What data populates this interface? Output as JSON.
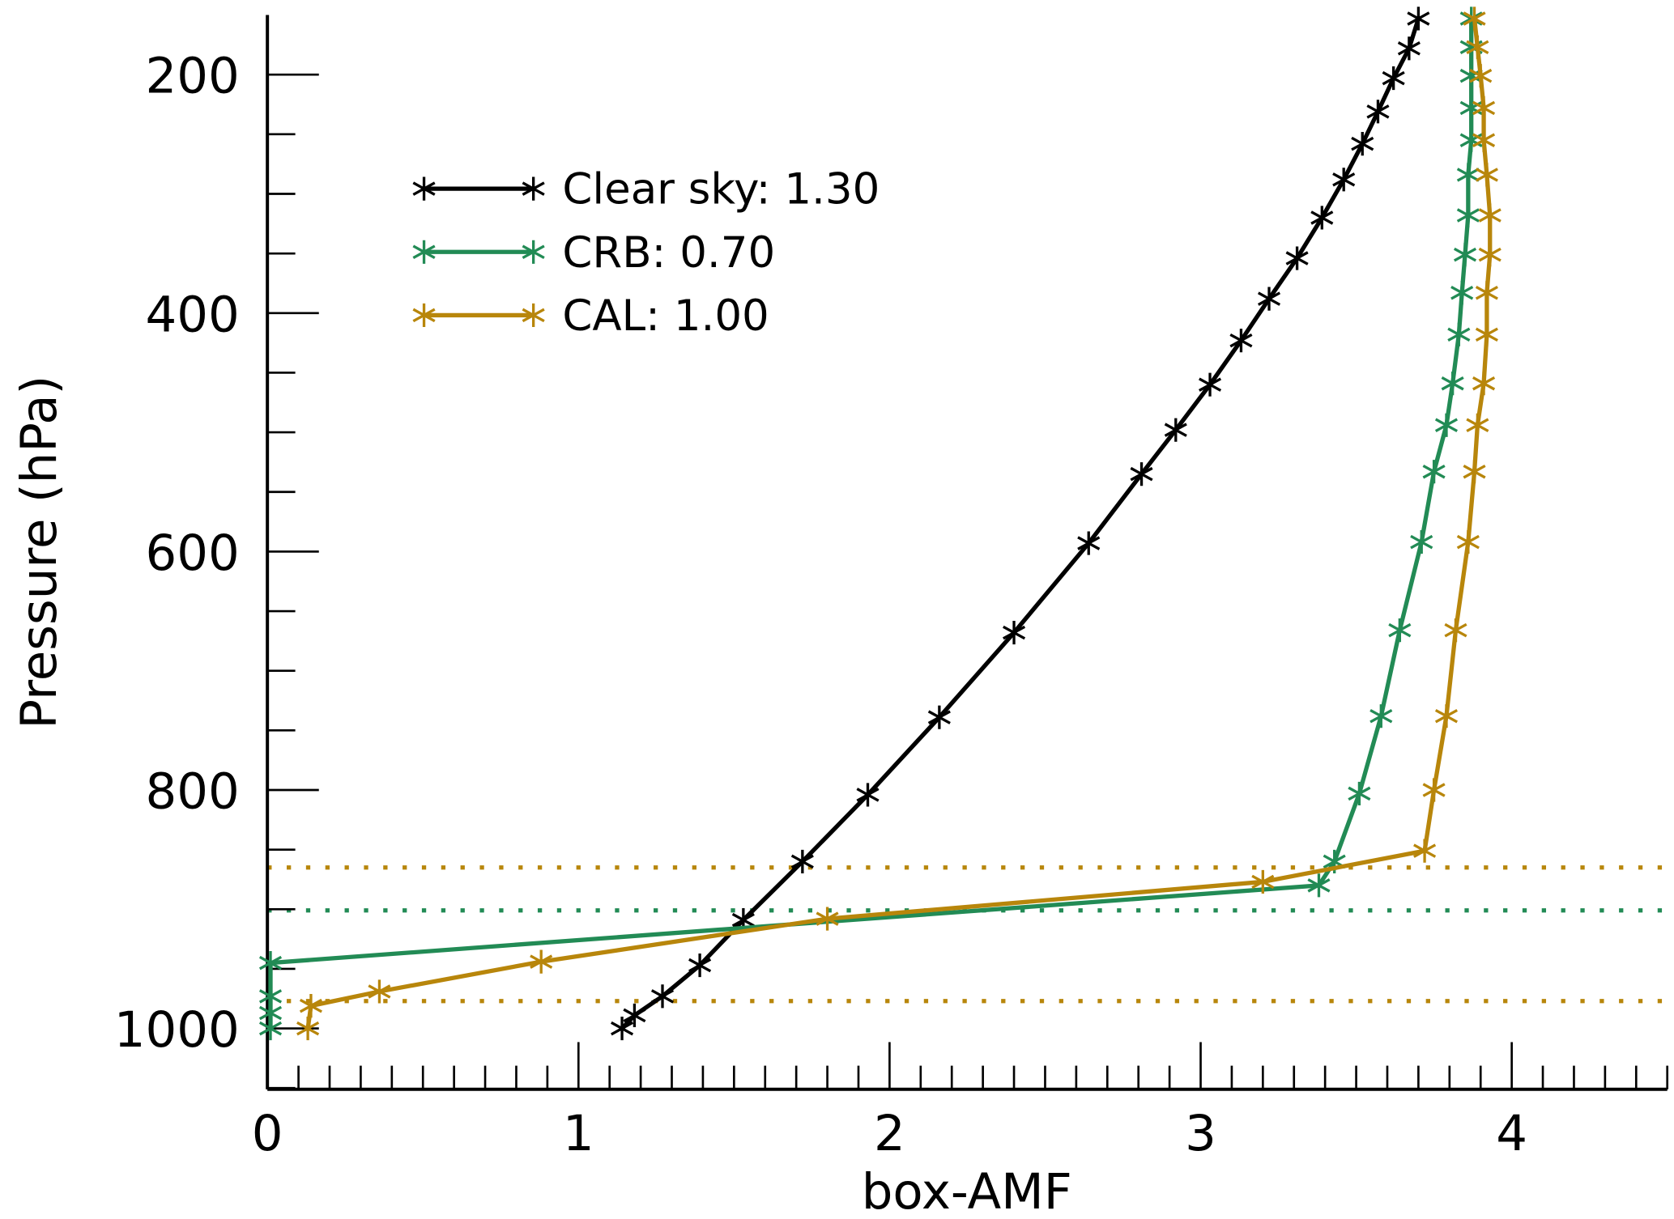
{
  "chart_data": {
    "type": "line",
    "title": "",
    "xlabel": "box-AMF",
    "ylabel": "Pressure (hPa)",
    "xlim": [
      0,
      4.5
    ],
    "ylim": [
      1051,
      150
    ],
    "y_inverted": true,
    "grid": false,
    "legend_position": "top-left",
    "x_ticks": [
      0,
      1,
      2,
      3,
      4
    ],
    "x_tick_labels": [
      "0",
      "1",
      "2",
      "3",
      "4"
    ],
    "x_minor_step": 0.1,
    "y_ticks": [
      200,
      400,
      600,
      800,
      1000
    ],
    "y_tick_labels": [
      "200",
      "400",
      "600",
      "800",
      "1000"
    ],
    "y_minor_step": 50,
    "series": [
      {
        "name": "Clear sky: 1.30",
        "color": "#000000",
        "x": [
          1.14,
          1.18,
          1.27,
          1.39,
          1.53,
          1.72,
          1.93,
          2.16,
          2.4,
          2.64,
          2.81,
          2.92,
          3.03,
          3.13,
          3.22,
          3.31,
          3.39,
          3.46,
          3.52,
          3.57,
          3.62,
          3.67,
          3.7
        ],
        "y": [
          1000,
          989,
          973,
          947,
          909,
          860,
          804,
          739,
          668,
          593,
          535,
          498,
          460,
          423,
          388,
          354,
          320,
          288,
          258,
          231,
          203,
          178,
          153
        ]
      },
      {
        "name": "CRB: 0.70",
        "color": "#228b55",
        "x": [
          0.01,
          0.01,
          0.01,
          0.01,
          3.38,
          3.43,
          3.51,
          3.58,
          3.64,
          3.71,
          3.75,
          3.79,
          3.81,
          3.83,
          3.84,
          3.85,
          3.86,
          3.86,
          3.87,
          3.87,
          3.87,
          3.87,
          3.87
        ],
        "y": [
          1000,
          987,
          973,
          945,
          880,
          860,
          803,
          738,
          666,
          592,
          533,
          494,
          459,
          418,
          383,
          351,
          318,
          284,
          255,
          228,
          201,
          177,
          153
        ]
      },
      {
        "name": "CAL: 1.00",
        "color": "#b8860b",
        "x": [
          0.13,
          0.14,
          0.36,
          0.88,
          1.8,
          3.2,
          3.72,
          3.75,
          3.79,
          3.82,
          3.86,
          3.88,
          3.89,
          3.91,
          3.92,
          3.92,
          3.93,
          3.93,
          3.92,
          3.91,
          3.91,
          3.9,
          3.89,
          3.88
        ],
        "y": [
          1000,
          981,
          969,
          944,
          908,
          877,
          851,
          800,
          738,
          666,
          592,
          533,
          494,
          459,
          418,
          383,
          351,
          318,
          284,
          255,
          228,
          201,
          177,
          153
        ]
      }
    ],
    "reference_lines": [
      {
        "y": 865,
        "color": "#b8860b",
        "style": "dotted"
      },
      {
        "y": 901,
        "color": "#228b55",
        "style": "dotted"
      },
      {
        "y": 977,
        "color": "#b8860b",
        "style": "dotted"
      }
    ]
  }
}
